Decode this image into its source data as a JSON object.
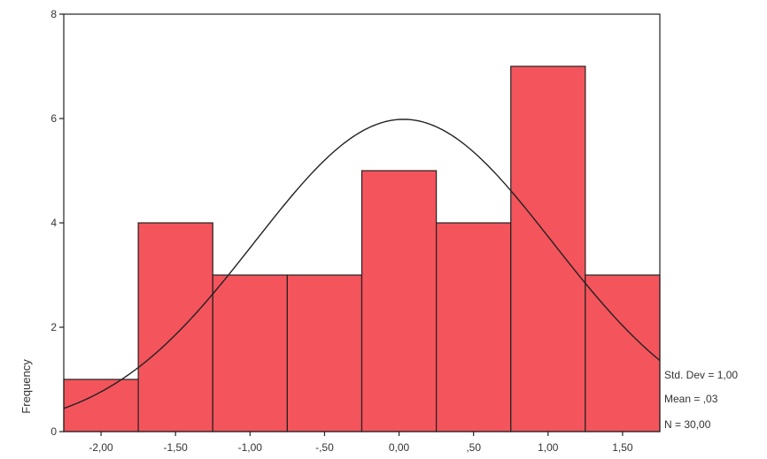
{
  "chart_data": {
    "type": "bar",
    "subtype": "histogram",
    "title": "",
    "xlabel": "",
    "ylabel": "Frequency",
    "bins": [
      {
        "from": -2.25,
        "to": -1.75,
        "count": 1
      },
      {
        "from": -1.75,
        "to": -1.25,
        "count": 4
      },
      {
        "from": -1.25,
        "to": -0.75,
        "count": 3
      },
      {
        "from": -0.75,
        "to": -0.25,
        "count": 3
      },
      {
        "from": -0.25,
        "to": 0.25,
        "count": 5
      },
      {
        "from": 0.25,
        "to": 0.75,
        "count": 4
      },
      {
        "from": 0.75,
        "to": 1.25,
        "count": 7
      },
      {
        "from": 1.25,
        "to": 1.75,
        "count": 3
      }
    ],
    "xlim": [
      -2.25,
      1.75
    ],
    "ylim": [
      0,
      8
    ],
    "x_ticks": [
      -2.0,
      -1.5,
      -1.0,
      -0.5,
      0.0,
      0.5,
      1.0,
      1.5
    ],
    "x_tick_labels": [
      "-2,00",
      "-1,50",
      "-1,00",
      "-,50",
      "0,00",
      ",50",
      "1,00",
      "1,50"
    ],
    "y_ticks": [
      0,
      2,
      4,
      6,
      8
    ],
    "y_tick_labels": [
      "0",
      "2",
      "4",
      "6",
      "8"
    ],
    "normal_curve": {
      "mean": 0.03,
      "std": 1.0,
      "n": 30,
      "bin_width": 0.5
    },
    "stats": {
      "std_dev": "Std. Dev = 1,00",
      "mean": "Mean = ,03",
      "n": "N = 30,00"
    },
    "grid": false,
    "colors": {
      "bar_fill": "#f4545c",
      "bar_stroke": "#222222",
      "curve": "#222222",
      "axis": "#222222"
    }
  }
}
